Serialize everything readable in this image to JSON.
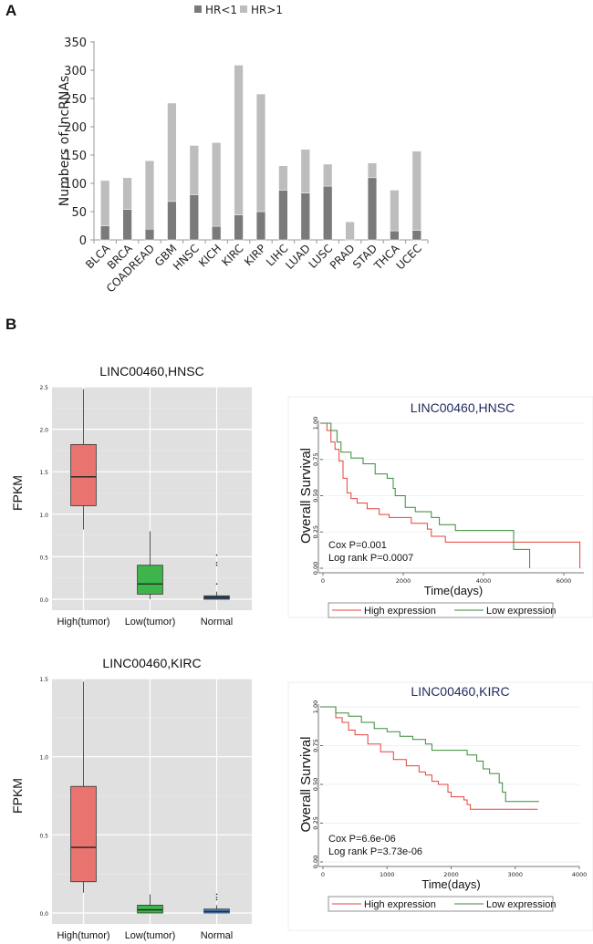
{
  "panels": {
    "a_label": "A",
    "b_label": "B"
  },
  "chart_data": [
    {
      "id": "A",
      "type": "bar",
      "stacked": true,
      "title": "",
      "xlabel": "",
      "ylabel": "Numbers of lncRNAs",
      "ylim": [
        0,
        350
      ],
      "yticks": [
        0,
        50,
        100,
        150,
        200,
        250,
        300,
        350
      ],
      "legend_position": "top-center",
      "categories": [
        "BLCA",
        "BRCA",
        "COADREAD",
        "GBM",
        "HNSC",
        "KICH",
        "KIRC",
        "KIRP",
        "LIHC",
        "LUAD",
        "LUSC",
        "PRAD",
        "STAD",
        "THCA",
        "UCEC"
      ],
      "series": [
        {
          "name": "HR<1",
          "color": "#7a7a7c",
          "values": [
            25,
            54,
            19,
            68,
            80,
            24,
            44,
            50,
            88,
            83,
            95,
            0,
            110,
            16,
            17
          ]
        },
        {
          "name": "HR>1",
          "color": "#bdbdbd",
          "values": [
            80,
            56,
            121,
            174,
            87,
            148,
            265,
            208,
            43,
            77,
            39,
            32,
            26,
            72,
            140
          ]
        }
      ],
      "totals": [
        105,
        110,
        140,
        242,
        167,
        172,
        309,
        258,
        131,
        160,
        134,
        32,
        136,
        88,
        157
      ]
    },
    {
      "id": "B1-box",
      "type": "boxplot",
      "title": "LINC00460,HNSC",
      "xlabel": "",
      "ylabel": "FPKM",
      "ylim": [
        0,
        2.5
      ],
      "yticks": [
        0.0,
        0.5,
        1.0,
        1.5,
        2.0,
        2.5
      ],
      "ytick_labels": [
        "0.0",
        "0.5",
        "1.0",
        "1.5",
        "2.0",
        "2.5"
      ],
      "categories": [
        "High(tumor)",
        "Low(tumor)",
        "Normal"
      ],
      "boxes": [
        {
          "category": "High(tumor)",
          "color": "#e8736f",
          "whisker_low": 0.82,
          "q1": 1.1,
          "median": 1.44,
          "q3": 1.82,
          "whisker_high": 2.47,
          "outliers": []
        },
        {
          "category": "Low(tumor)",
          "color": "#3db54a",
          "whisker_low": 0.0,
          "q1": 0.06,
          "median": 0.18,
          "q3": 0.4,
          "whisker_high": 0.8,
          "outliers": []
        },
        {
          "category": "Normal",
          "color": "#3d5a80",
          "whisker_low": 0.0,
          "q1": 0.0,
          "median": 0.02,
          "q3": 0.04,
          "whisker_high": 0.09,
          "outliers": [
            0.18,
            0.4,
            0.43,
            0.52
          ]
        }
      ]
    },
    {
      "id": "B1-km",
      "type": "line",
      "subtype": "kaplan-meier",
      "title": "LINC00460,HNSC",
      "xlabel": "Time(days)",
      "ylabel": "Overall Survival",
      "xlim": [
        0,
        6500
      ],
      "ylim": [
        0,
        1
      ],
      "xticks": [
        0,
        2000,
        4000,
        6000
      ],
      "yticks": [
        0,
        0.25,
        0.5,
        0.75,
        1
      ],
      "ytick_labels": [
        "0.00",
        "0.25",
        "0.50",
        "0.75",
        "1.00"
      ],
      "annotations": [
        "Cox P=0.001",
        "Log rank P=0.0007"
      ],
      "legend_position": "bottom",
      "series": [
        {
          "name": "High expression",
          "color": "#e8413a",
          "x": [
            0,
            100,
            200,
            300,
            400,
            500,
            600,
            700,
            850,
            1100,
            1400,
            1650,
            2200,
            2600,
            2700,
            3050,
            6400,
            6400
          ],
          "y": [
            1.0,
            0.95,
            0.87,
            0.82,
            0.74,
            0.62,
            0.52,
            0.48,
            0.45,
            0.41,
            0.37,
            0.35,
            0.31,
            0.27,
            0.22,
            0.18,
            0.18,
            0.0
          ]
        },
        {
          "name": "Low expression",
          "color": "#3a8a3a",
          "x": [
            0,
            200,
            350,
            450,
            700,
            1000,
            1300,
            1600,
            1750,
            1800,
            1950,
            2050,
            2300,
            2700,
            2900,
            3300,
            4750,
            4750,
            5150,
            5150
          ],
          "y": [
            1.0,
            0.95,
            0.87,
            0.8,
            0.76,
            0.72,
            0.65,
            0.62,
            0.55,
            0.5,
            0.5,
            0.42,
            0.39,
            0.35,
            0.3,
            0.26,
            0.26,
            0.13,
            0.13,
            0.0
          ]
        }
      ]
    },
    {
      "id": "B2-box",
      "type": "boxplot",
      "title": "LINC00460,KIRC",
      "xlabel": "",
      "ylabel": "FPKM",
      "ylim": [
        0,
        1.5
      ],
      "yticks": [
        0.0,
        0.5,
        1.0,
        1.5
      ],
      "ytick_labels": [
        "0.0",
        "0.5",
        "1.0",
        "1.5"
      ],
      "categories": [
        "High(tumor)",
        "Low(tumor)",
        "Normal"
      ],
      "boxes": [
        {
          "category": "High(tumor)",
          "color": "#e8736f",
          "whisker_low": 0.13,
          "q1": 0.2,
          "median": 0.42,
          "q3": 0.81,
          "whisker_high": 1.48,
          "outliers": []
        },
        {
          "category": "Low(tumor)",
          "color": "#3db54a",
          "whisker_low": 0.0,
          "q1": 0.0,
          "median": 0.02,
          "q3": 0.05,
          "whisker_high": 0.12,
          "outliers": []
        },
        {
          "category": "Normal",
          "color": "#4a86d0",
          "whisker_low": 0.0,
          "q1": 0.0,
          "median": 0.01,
          "q3": 0.025,
          "whisker_high": 0.05,
          "outliers": [
            0.085,
            0.1,
            0.12
          ]
        }
      ]
    },
    {
      "id": "B2-km",
      "type": "line",
      "subtype": "kaplan-meier",
      "title": "LINC00460,KIRC",
      "xlabel": "Time(days)",
      "ylabel": "Overall Survival",
      "xlim": [
        0,
        4000
      ],
      "ylim": [
        0,
        1
      ],
      "xticks": [
        0,
        1000,
        2000,
        3000,
        4000
      ],
      "yticks": [
        0,
        0.25,
        0.5,
        0.75,
        1
      ],
      "ytick_labels": [
        "0.00",
        "0.25",
        "0.50",
        "0.75",
        "1.00"
      ],
      "annotations": [
        "Cox P=6.6e-06",
        "Log rank P=3.73e-06"
      ],
      "legend_position": "bottom",
      "series": [
        {
          "name": "High expression",
          "color": "#e8413a",
          "x": [
            0,
            200,
            300,
            400,
            500,
            700,
            900,
            1100,
            1300,
            1500,
            1600,
            1700,
            1800,
            1950,
            2000,
            2200,
            2250,
            2300,
            3350
          ],
          "y": [
            1.0,
            0.93,
            0.9,
            0.85,
            0.82,
            0.76,
            0.71,
            0.66,
            0.62,
            0.58,
            0.56,
            0.52,
            0.5,
            0.45,
            0.42,
            0.4,
            0.37,
            0.34,
            0.34
          ]
        },
        {
          "name": "Low expression",
          "color": "#3a8a3a",
          "x": [
            0,
            200,
            400,
            600,
            800,
            1000,
            1200,
            1400,
            1600,
            1700,
            2100,
            2250,
            2400,
            2500,
            2600,
            2750,
            2800,
            2850,
            3370
          ],
          "y": [
            1.0,
            0.96,
            0.94,
            0.9,
            0.86,
            0.84,
            0.81,
            0.79,
            0.76,
            0.72,
            0.72,
            0.69,
            0.65,
            0.6,
            0.57,
            0.51,
            0.45,
            0.39,
            0.39
          ]
        }
      ]
    }
  ]
}
